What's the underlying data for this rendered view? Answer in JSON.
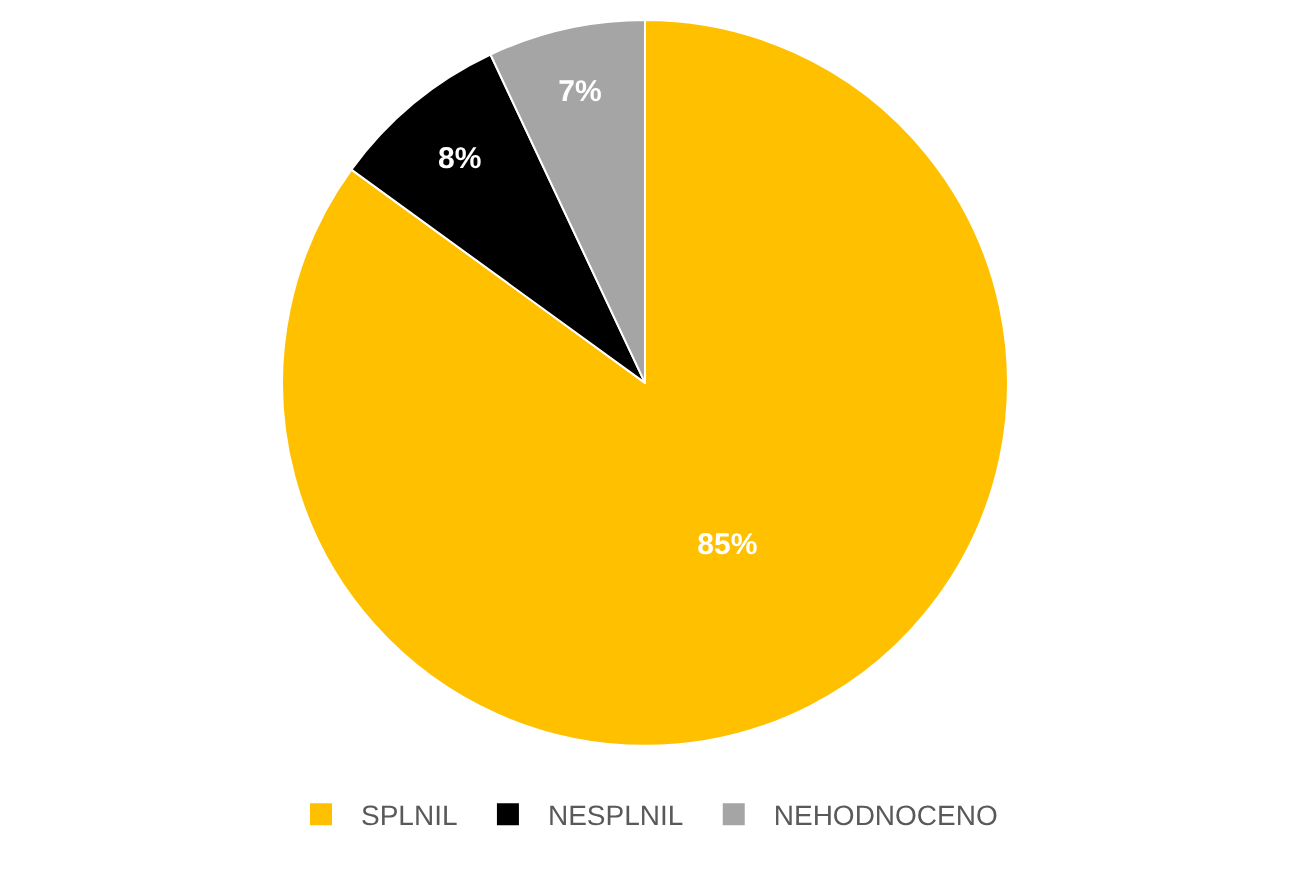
{
  "chart_data": {
    "type": "pie",
    "categories": [
      "SPLNIL",
      "NESPLNIL",
      "NEHODNOCENO"
    ],
    "values": [
      85,
      8,
      7
    ],
    "colors": [
      "#ffc000",
      "#000000",
      "#a5a5a5"
    ],
    "value_labels": [
      "85%",
      "8%",
      "7%"
    ],
    "legend": "bottom"
  }
}
